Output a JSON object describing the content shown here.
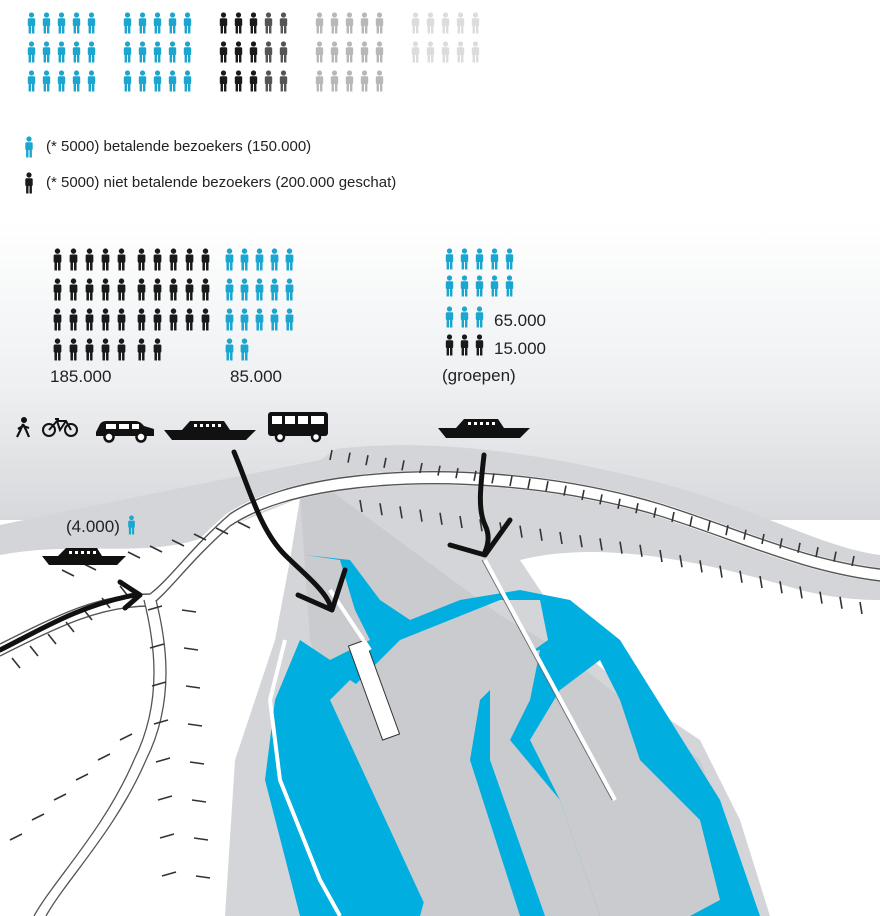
{
  "colors": {
    "paying": "#1aa6cf",
    "nonpaying": "#1a1a1a",
    "water": "#00aee0",
    "land": "#d3d5d8",
    "grey_mid": "#7f7f7f",
    "grey_light": "#b8b8b8",
    "grey_faint": "#dcdcdc"
  },
  "legend": {
    "paying": "(* 5000) betalende bezoekers (150.000)",
    "nonpaying": "(* 5000) niet betalende bezoekers (200.000 geschat)"
  },
  "top_pictogram": {
    "paying_count": 30,
    "nonpaying_count": 40
  },
  "arrival_groups": [
    {
      "label": "185.000",
      "nonpaying_count": 37
    },
    {
      "label": "85.000",
      "paying_count": 17
    }
  ],
  "ferry_group": {
    "paying_label": "65.000",
    "nonpaying_label": "15.000",
    "note": "(groepen)"
  },
  "small_ferry_label": "(4.000)",
  "transport_icons": [
    "walking-icon",
    "bicycle-icon",
    "car-icon",
    "ferry-icon",
    "bus-icon"
  ]
}
